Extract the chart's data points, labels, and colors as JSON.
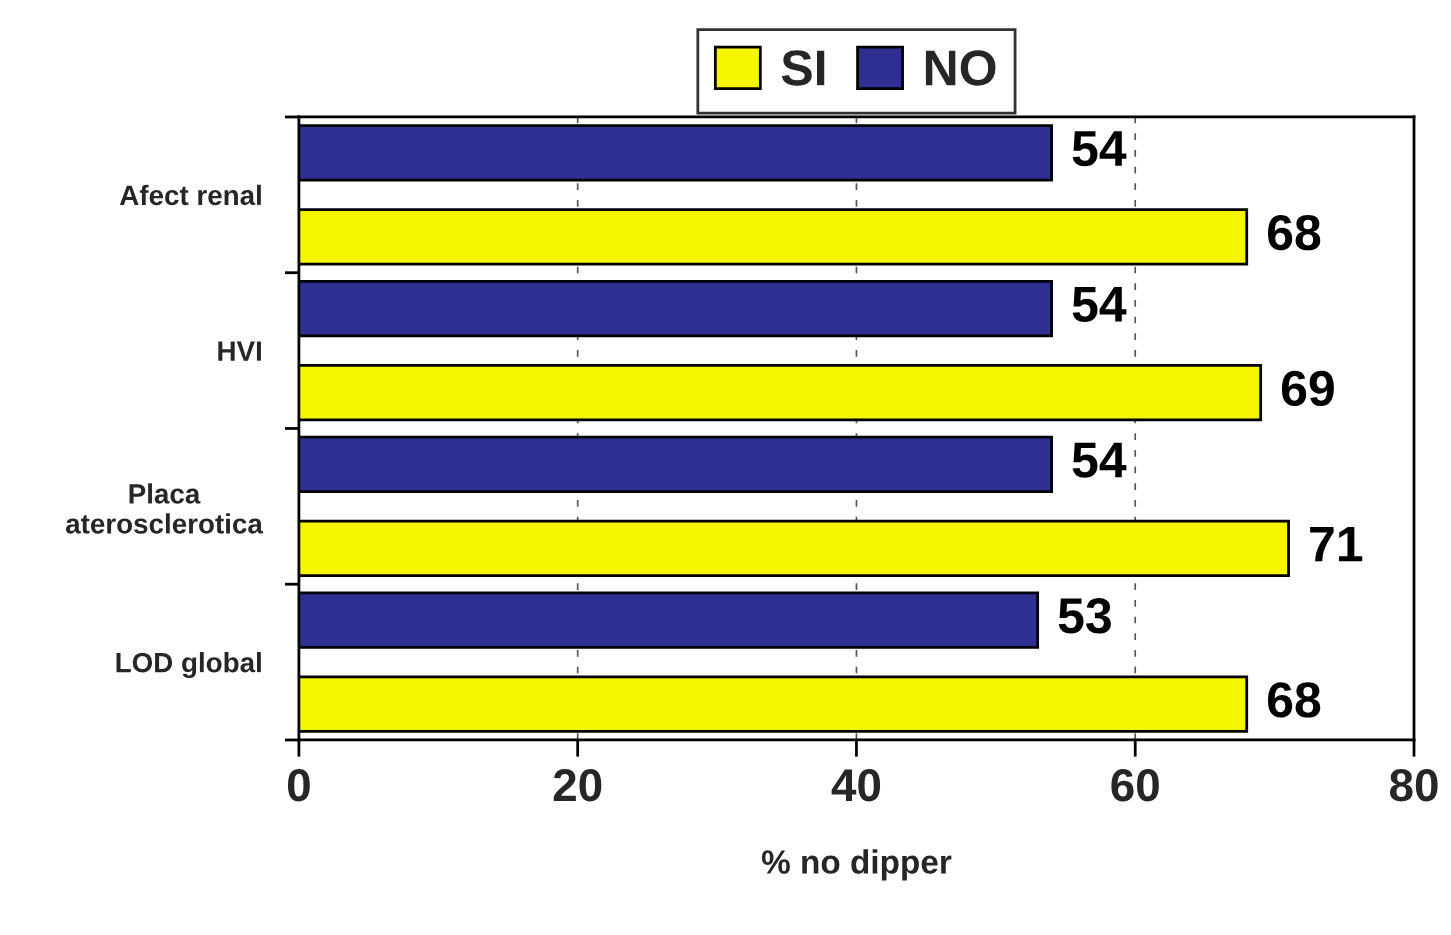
{
  "chart_data": {
    "type": "bar",
    "orientation": "horizontal",
    "categories": [
      "Afect renal",
      "HVI",
      "Placa\naterosclerotica",
      "LOD global"
    ],
    "series": [
      {
        "name": "SI",
        "color": "#f5f500",
        "values": [
          68,
          69,
          71,
          68
        ]
      },
      {
        "name": "NO",
        "color": "#2e3192",
        "values": [
          54,
          54,
          54,
          53
        ]
      }
    ],
    "xlabel": "% no dipper",
    "xlim": [
      0,
      80
    ],
    "xticks": [
      0,
      20,
      40,
      60,
      80
    ],
    "grid": "x",
    "legend": "top",
    "data_labels": true
  }
}
